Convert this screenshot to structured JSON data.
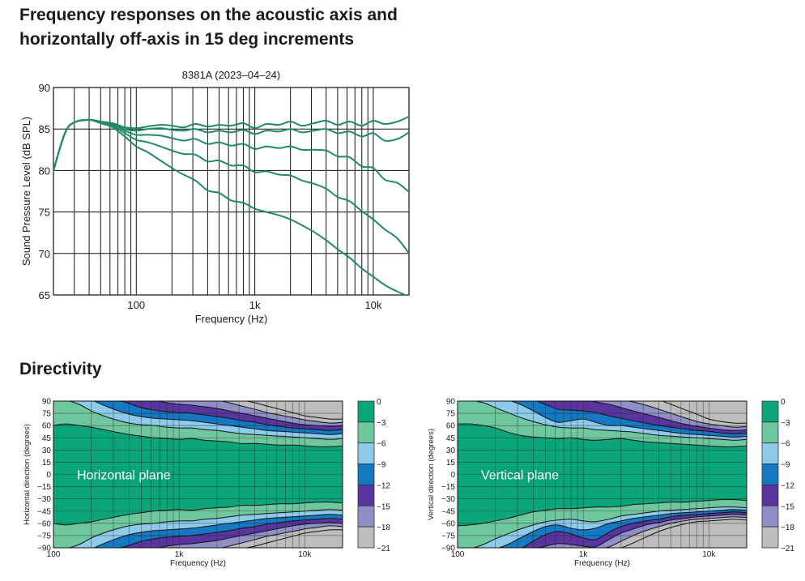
{
  "headings": {
    "frequency_response": "Frequency responses on the acoustic axis and horizontally off-axis in 15 deg increments",
    "directivity": "Directivity"
  },
  "colors": {
    "curve": "#1f8a66",
    "band_0_3": "#0aa67a",
    "band_3_6": "#6fc79d",
    "band_6_9": "#8ccbea",
    "band_9_12": "#1478c2",
    "band_12_15": "#5a35a0",
    "band_15_18": "#8f8fc8",
    "band_18_21": "#bdbdbd"
  },
  "chart_data": [
    {
      "type": "line",
      "title": "8381A (2023–04–24)",
      "xlabel": "Frequency (Hz)",
      "ylabel": "Sound Pressure Level (dB SPL)",
      "x_scale": "log",
      "xlim": [
        20,
        20000
      ],
      "ylim": [
        65,
        90
      ],
      "x_ticks": [
        {
          "value": 100,
          "label": "100"
        },
        {
          "value": 1000,
          "label": "1k"
        },
        {
          "value": 10000,
          "label": "10k"
        }
      ],
      "y_ticks": [
        65,
        70,
        75,
        80,
        85,
        90
      ],
      "grid": true,
      "x": [
        20,
        25,
        30,
        40,
        50,
        63,
        80,
        100,
        125,
        160,
        200,
        250,
        315,
        400,
        500,
        630,
        800,
        1000,
        1250,
        1600,
        2000,
        2500,
        3150,
        4000,
        5000,
        6300,
        8000,
        10000,
        12500,
        16000,
        20000
      ],
      "series": [
        {
          "values": [
            80.0,
            84.5,
            85.8,
            86.1,
            85.9,
            85.7,
            85.2,
            85.1,
            85.3,
            85.5,
            85.4,
            85.2,
            85.6,
            85.3,
            85.5,
            85.4,
            85.7,
            85.1,
            85.6,
            85.5,
            85.9,
            85.4,
            85.7,
            86.0,
            85.5,
            85.9,
            85.4,
            86.0,
            85.6,
            85.9,
            86.5
          ]
        },
        {
          "values": [
            80.0,
            84.5,
            85.8,
            86.1,
            85.9,
            85.6,
            85.0,
            84.8,
            85.0,
            85.1,
            84.9,
            84.8,
            85.0,
            84.6,
            84.8,
            84.6,
            84.9,
            84.4,
            84.8,
            84.7,
            85.0,
            84.6,
            84.8,
            85.0,
            84.5,
            84.7,
            84.1,
            84.5,
            83.6,
            83.8,
            84.6
          ]
        },
        {
          "values": [
            80.0,
            84.5,
            85.8,
            86.1,
            85.8,
            85.5,
            84.8,
            84.3,
            84.3,
            84.2,
            83.9,
            83.6,
            83.8,
            83.2,
            83.4,
            83.0,
            83.2,
            82.6,
            82.9,
            82.7,
            82.9,
            82.5,
            82.5,
            82.4,
            81.7,
            81.6,
            80.5,
            80.3,
            78.9,
            78.5,
            77.4
          ]
        },
        {
          "values": [
            80.0,
            84.5,
            85.8,
            86.1,
            85.8,
            85.4,
            84.5,
            83.7,
            83.4,
            82.9,
            82.4,
            82.0,
            81.9,
            81.1,
            81.2,
            80.6,
            80.6,
            79.8,
            79.9,
            79.5,
            79.4,
            78.8,
            78.4,
            77.8,
            76.8,
            76.3,
            75.1,
            74.1,
            72.9,
            71.8,
            70.0
          ]
        },
        {
          "values": [
            80.0,
            84.5,
            85.8,
            86.1,
            85.7,
            85.2,
            84.1,
            82.9,
            82.2,
            81.2,
            80.3,
            79.5,
            78.8,
            77.6,
            77.3,
            76.4,
            76.1,
            75.4,
            75.0,
            74.6,
            74.1,
            73.4,
            72.6,
            71.6,
            70.5,
            69.5,
            68.2,
            67.2,
            66.2,
            65.4,
            64.8
          ]
        }
      ]
    },
    {
      "type": "heatmap",
      "label": "Horizontal plane",
      "xlabel": "Frequency (Hz)",
      "ylabel": "Horizontal direction (degrees)",
      "x_scale": "log",
      "xlim": [
        100,
        20000
      ],
      "ylim": [
        -90,
        90
      ],
      "x_ticks": [
        {
          "value": 100,
          "label": "100"
        },
        {
          "value": 1000,
          "label": "1k"
        },
        {
          "value": 10000,
          "label": "10k"
        }
      ],
      "y_ticks": [
        90,
        75,
        60,
        45,
        30,
        15,
        0,
        -15,
        -30,
        -45,
        -60,
        -75,
        -90
      ],
      "levels_db": [
        0,
        -3,
        -6,
        -9,
        -12,
        -15,
        -18,
        -21
      ],
      "x": [
        100,
        125,
        160,
        200,
        250,
        315,
        400,
        500,
        630,
        800,
        1000,
        1250,
        1600,
        2000,
        2500,
        3150,
        4000,
        5000,
        6300,
        8000,
        10000,
        12500,
        16000,
        20000
      ],
      "contours_deg": [
        {
          "level": -3,
          "values": [
            60,
            62,
            60,
            58,
            55,
            52,
            49,
            47,
            45,
            44,
            43,
            44,
            42,
            41,
            40,
            38,
            38,
            37,
            36,
            36,
            35,
            34,
            34,
            35
          ]
        },
        {
          "level": -6,
          "values": [
            91,
            91,
            86,
            78,
            72,
            67,
            63,
            61,
            60,
            58,
            57,
            57,
            55,
            54,
            52,
            50,
            49,
            48,
            47,
            46,
            45,
            44,
            43,
            44
          ]
        },
        {
          "level": -9,
          "values": [
            91,
            91,
            91,
            91,
            85,
            79,
            74,
            71,
            69,
            68,
            67,
            66,
            64,
            62,
            60,
            58,
            56,
            54,
            53,
            52,
            51,
            50,
            49,
            50
          ]
        },
        {
          "level": -12,
          "values": [
            91,
            91,
            91,
            91,
            91,
            91,
            87,
            82,
            79,
            77,
            76,
            75,
            73,
            71,
            69,
            66,
            64,
            61,
            59,
            57,
            56,
            55,
            54,
            55
          ]
        },
        {
          "level": -15,
          "values": [
            91,
            91,
            91,
            91,
            91,
            91,
            91,
            91,
            91,
            88,
            86,
            85,
            83,
            81,
            78,
            75,
            72,
            69,
            66,
            63,
            61,
            60,
            59,
            60
          ]
        },
        {
          "level": -18,
          "values": [
            91,
            91,
            91,
            91,
            91,
            91,
            91,
            91,
            91,
            91,
            91,
            91,
            91,
            91,
            88,
            84,
            80,
            76,
            73,
            70,
            67,
            65,
            63,
            64
          ]
        },
        {
          "level": -21,
          "values": [
            91,
            91,
            91,
            91,
            91,
            91,
            91,
            91,
            91,
            91,
            91,
            91,
            91,
            91,
            91,
            91,
            88,
            84,
            80,
            76,
            72,
            70,
            68,
            68
          ]
        }
      ],
      "symmetric": true,
      "colorbar_ticks": [
        "0",
        "−3",
        "−6",
        "−9",
        "−12",
        "−15",
        "−18",
        "−21"
      ]
    },
    {
      "type": "heatmap",
      "label": "Vertical plane",
      "xlabel": "Frequency (Hz)",
      "ylabel": "Vertical direction (degrees)",
      "x_scale": "log",
      "xlim": [
        100,
        20000
      ],
      "ylim": [
        -90,
        90
      ],
      "x_ticks": [
        {
          "value": 100,
          "label": "100"
        },
        {
          "value": 1000,
          "label": "1k"
        },
        {
          "value": 10000,
          "label": "10k"
        }
      ],
      "y_ticks": [
        90,
        75,
        60,
        45,
        30,
        15,
        0,
        -15,
        -30,
        -45,
        -60,
        -75,
        -90
      ],
      "levels_db": [
        0,
        -3,
        -6,
        -9,
        -12,
        -15,
        -18,
        -21
      ],
      "x": [
        100,
        125,
        160,
        200,
        250,
        315,
        400,
        500,
        630,
        800,
        1000,
        1250,
        1600,
        2000,
        2500,
        3150,
        4000,
        5000,
        6300,
        8000,
        10000,
        12500,
        16000,
        20000
      ],
      "contours_deg": [
        {
          "level": -3,
          "values": [
            62,
            62,
            60,
            57,
            52,
            48,
            46,
            45,
            44,
            45,
            43,
            42,
            43,
            44,
            42,
            40,
            39,
            38,
            37,
            36,
            35,
            34,
            34,
            35
          ]
        },
        {
          "level": -6,
          "values": [
            91,
            91,
            88,
            82,
            76,
            70,
            65,
            61,
            58,
            57,
            57,
            55,
            54,
            53,
            52,
            50,
            48,
            47,
            46,
            45,
            44,
            43,
            42,
            43
          ]
        },
        {
          "level": -9,
          "values": [
            91,
            91,
            91,
            91,
            91,
            86,
            78,
            70,
            64,
            66,
            68,
            64,
            60,
            60,
            58,
            56,
            54,
            52,
            50,
            49,
            48,
            47,
            46,
            47
          ]
        },
        {
          "level": -12,
          "values": [
            91,
            91,
            91,
            91,
            91,
            91,
            91,
            86,
            80,
            79,
            78,
            76,
            72,
            69,
            66,
            63,
            60,
            58,
            56,
            54,
            53,
            51,
            50,
            51
          ]
        },
        {
          "level": -15,
          "values": [
            91,
            91,
            91,
            91,
            91,
            91,
            91,
            91,
            91,
            91,
            91,
            89,
            86,
            82,
            78,
            74,
            70,
            66,
            62,
            59,
            57,
            55,
            54,
            55
          ]
        },
        {
          "level": -18,
          "values": [
            91,
            91,
            91,
            91,
            91,
            91,
            91,
            91,
            91,
            91,
            91,
            91,
            91,
            91,
            89,
            85,
            80,
            75,
            70,
            65,
            62,
            60,
            58,
            59
          ]
        },
        {
          "level": -21,
          "values": [
            91,
            91,
            91,
            91,
            91,
            91,
            91,
            91,
            91,
            91,
            91,
            91,
            91,
            91,
            91,
            91,
            91,
            86,
            80,
            74,
            68,
            65,
            63,
            63
          ]
        }
      ],
      "symmetric": false,
      "lower_contours_deg": [
        {
          "level": -3,
          "values": [
            -63,
            -62,
            -60,
            -57,
            -54,
            -50,
            -46,
            -44,
            -42,
            -42,
            -41,
            -40,
            -40,
            -39,
            -37,
            -36,
            -35,
            -34,
            -34,
            -33,
            -32,
            -31,
            -31,
            -32
          ]
        },
        {
          "level": -6,
          "values": [
            -91,
            -91,
            -86,
            -79,
            -73,
            -67,
            -62,
            -58,
            -56,
            -55,
            -57,
            -58,
            -55,
            -51,
            -49,
            -47,
            -45,
            -44,
            -43,
            -42,
            -41,
            -40,
            -40,
            -41
          ]
        },
        {
          "level": -9,
          "values": [
            -91,
            -91,
            -91,
            -91,
            -86,
            -78,
            -70,
            -64,
            -62,
            -66,
            -68,
            -66,
            -60,
            -57,
            -54,
            -52,
            -50,
            -48,
            -47,
            -46,
            -45,
            -44,
            -43,
            -44
          ]
        },
        {
          "level": -12,
          "values": [
            -91,
            -91,
            -91,
            -91,
            -91,
            -91,
            -82,
            -74,
            -70,
            -73,
            -78,
            -80,
            -71,
            -64,
            -60,
            -57,
            -55,
            -52,
            -50,
            -49,
            -48,
            -47,
            -46,
            -47
          ]
        },
        {
          "level": -15,
          "values": [
            -91,
            -91,
            -91,
            -91,
            -91,
            -91,
            -91,
            -88,
            -85,
            -86,
            -88,
            -89,
            -80,
            -72,
            -67,
            -62,
            -59,
            -56,
            -54,
            -52,
            -51,
            -50,
            -49,
            -50
          ]
        },
        {
          "level": -18,
          "values": [
            -91,
            -91,
            -91,
            -91,
            -91,
            -91,
            -91,
            -91,
            -91,
            -91,
            -91,
            -91,
            -89,
            -82,
            -75,
            -69,
            -64,
            -60,
            -57,
            -55,
            -54,
            -53,
            -52,
            -53
          ]
        },
        {
          "level": -21,
          "values": [
            -91,
            -91,
            -91,
            -91,
            -91,
            -91,
            -91,
            -91,
            -91,
            -91,
            -91,
            -91,
            -91,
            -90,
            -84,
            -77,
            -70,
            -65,
            -61,
            -58,
            -57,
            -56,
            -55,
            -56
          ]
        }
      ],
      "colorbar_ticks": [
        "0",
        "−3",
        "−6",
        "−9",
        "−12",
        "−15",
        "−18",
        "−21"
      ]
    }
  ]
}
